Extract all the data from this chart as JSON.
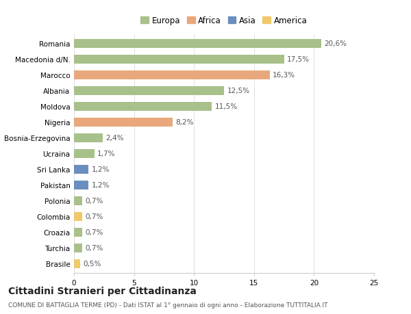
{
  "countries": [
    "Romania",
    "Macedonia d/N.",
    "Marocco",
    "Albania",
    "Moldova",
    "Nigeria",
    "Bosnia-Erzegovina",
    "Ucraina",
    "Sri Lanka",
    "Pakistan",
    "Polonia",
    "Colombia",
    "Croazia",
    "Turchia",
    "Brasile"
  ],
  "values": [
    20.6,
    17.5,
    16.3,
    12.5,
    11.5,
    8.2,
    2.4,
    1.7,
    1.2,
    1.2,
    0.7,
    0.7,
    0.7,
    0.7,
    0.5
  ],
  "continents": [
    "Europa",
    "Europa",
    "Africa",
    "Europa",
    "Europa",
    "Africa",
    "Europa",
    "Europa",
    "Asia",
    "Asia",
    "Europa",
    "America",
    "Europa",
    "Europa",
    "America"
  ],
  "labels": [
    "20,6%",
    "17,5%",
    "16,3%",
    "12,5%",
    "11,5%",
    "8,2%",
    "2,4%",
    "1,7%",
    "1,2%",
    "1,2%",
    "0,7%",
    "0,7%",
    "0,7%",
    "0,7%",
    "0,5%"
  ],
  "continent_colors": {
    "Europa": "#a8c08a",
    "Africa": "#e8a87c",
    "Asia": "#6a8fbf",
    "America": "#f0c96a"
  },
  "legend_order": [
    "Europa",
    "Africa",
    "Asia",
    "America"
  ],
  "xlim": [
    0,
    25
  ],
  "xticks": [
    0,
    5,
    10,
    15,
    20,
    25
  ],
  "title": "Cittadini Stranieri per Cittadinanza",
  "subtitle": "COMUNE DI BATTAGLIA TERME (PD) - Dati ISTAT al 1° gennaio di ogni anno - Elaborazione TUTTITALIA.IT",
  "background_color": "#ffffff",
  "bar_height": 0.6,
  "label_fontsize": 7.5,
  "tick_fontsize": 7.5,
  "legend_fontsize": 8.5,
  "title_fontsize": 10,
  "subtitle_fontsize": 6.5
}
